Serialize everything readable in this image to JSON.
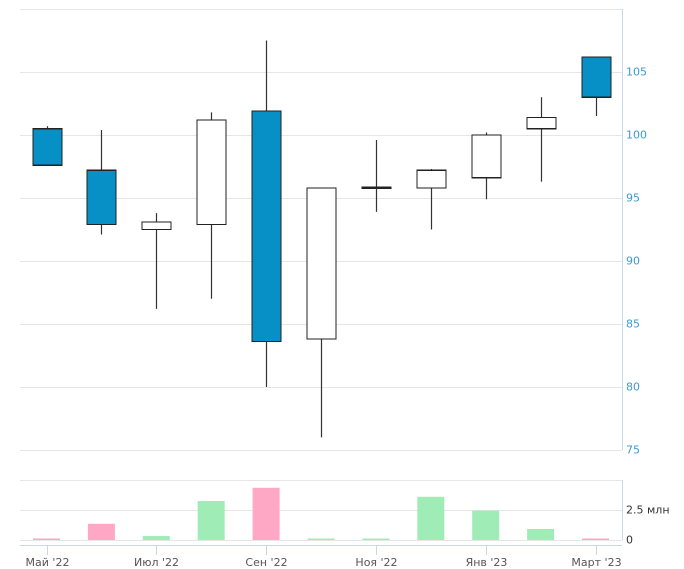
{
  "chart_data": {
    "type": "candlestick",
    "title": "",
    "xlabel": "",
    "ylabel": "",
    "x_tick_labels": [
      {
        "index": 0,
        "label": "Май '22"
      },
      {
        "index": 2,
        "label": "Июл '22"
      },
      {
        "index": 4,
        "label": "Сен '22"
      },
      {
        "index": 6,
        "label": "Ноя '22"
      },
      {
        "index": 8,
        "label": "Янв '23"
      },
      {
        "index": 10,
        "label": "Март '23"
      }
    ],
    "price": {
      "ylim": [
        75,
        110
      ],
      "y_ticks": [
        {
          "value": 75,
          "label": "75"
        },
        {
          "value": 80,
          "label": "80"
        },
        {
          "value": 85,
          "label": "85"
        },
        {
          "value": 90,
          "label": "90"
        },
        {
          "value": 95,
          "label": "95"
        },
        {
          "value": 100,
          "label": "100"
        },
        {
          "value": 105,
          "label": "105"
        },
        {
          "value": 110,
          "label": ""
        }
      ],
      "ohlc": [
        {
          "open": 100.5,
          "high": 100.7,
          "low": 97.6,
          "close": 97.6
        },
        {
          "open": 97.2,
          "high": 100.4,
          "low": 92.1,
          "close": 92.9
        },
        {
          "open": 92.5,
          "high": 93.8,
          "low": 86.2,
          "close": 93.1
        },
        {
          "open": 92.9,
          "high": 101.8,
          "low": 87.0,
          "close": 101.2
        },
        {
          "open": 101.9,
          "high": 107.5,
          "low": 80.0,
          "close": 83.6
        },
        {
          "open": 83.8,
          "high": 95.8,
          "low": 76.0,
          "close": 95.8
        },
        {
          "open": 95.8,
          "high": 99.6,
          "low": 93.9,
          "close": 95.85
        },
        {
          "open": 95.8,
          "high": 97.3,
          "low": 92.5,
          "close": 97.2
        },
        {
          "open": 96.6,
          "high": 100.2,
          "low": 94.9,
          "close": 100.0
        },
        {
          "open": 100.5,
          "high": 103.0,
          "low": 96.3,
          "close": 101.4
        },
        {
          "open": 106.2,
          "high": 106.2,
          "low": 101.5,
          "close": 103.0
        }
      ]
    },
    "volume": {
      "unit": "млн",
      "ylim": [
        0,
        5
      ],
      "y_ticks": [
        {
          "value": 0,
          "label": "0"
        },
        {
          "value": 2.5,
          "label": "2.5 млн"
        },
        {
          "value": 5,
          "label": ""
        }
      ],
      "values": [
        0.08,
        1.35,
        0.33,
        3.25,
        4.35,
        0.08,
        0.08,
        3.6,
        2.45,
        0.92,
        0.08
      ],
      "directions": [
        "down",
        "down",
        "up",
        "up",
        "down",
        "up",
        "up",
        "up",
        "up",
        "up",
        "down"
      ]
    },
    "colors": {
      "down_candle": "#0790c6",
      "up_candle": "#ffffff",
      "volume_down": "#ffa8c6",
      "volume_up": "#9fecb7"
    },
    "grid": true,
    "legend": null
  }
}
